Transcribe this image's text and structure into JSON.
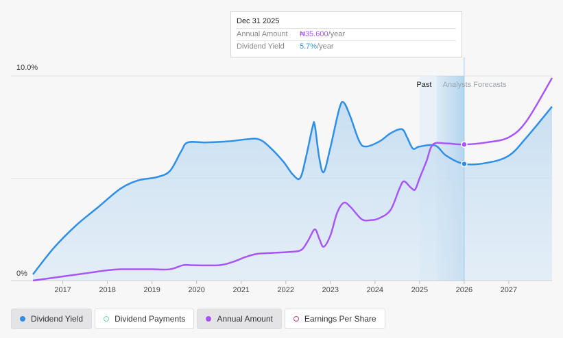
{
  "tooltip": {
    "date": "Dec 31 2025",
    "rows": [
      {
        "label": "Annual Amount",
        "value": "₦35.600",
        "unit": "/year",
        "color": "#a855f7"
      },
      {
        "label": "Dividend Yield",
        "value": "5.7%",
        "unit": "/year",
        "color": "#3a97e3"
      }
    ]
  },
  "legend": [
    {
      "label": "Dividend Yield",
      "color": "#2e8fe6",
      "filled": true,
      "active": true
    },
    {
      "label": "Dividend Payments",
      "color": "#6fd6c4",
      "filled": false,
      "active": false
    },
    {
      "label": "Annual Amount",
      "color": "#a855f7",
      "filled": true,
      "active": true
    },
    {
      "label": "Earnings Per Share",
      "color": "#c4467a",
      "filled": false,
      "active": false
    }
  ],
  "chart_data": {
    "type": "line",
    "y_axis_labels": [
      "10.0%",
      "0%"
    ],
    "ylim": [
      0,
      10
    ],
    "x_ticks": [
      "2017",
      "2018",
      "2019",
      "2020",
      "2021",
      "2022",
      "2023",
      "2024",
      "2025",
      "2026",
      "2027"
    ],
    "xlim": [
      2016.33,
      2027.97
    ],
    "regions": {
      "past_label": "Past",
      "forecast_label": "Analysts Forecasts",
      "past_end": 2025.0,
      "now": 2026.0
    },
    "series": [
      {
        "name": "Dividend Yield",
        "color": "#2e8fe6",
        "unit": "%",
        "points": [
          [
            2016.33,
            0.3
          ],
          [
            2016.8,
            1.6
          ],
          [
            2017.3,
            2.7
          ],
          [
            2017.8,
            3.6
          ],
          [
            2018.3,
            4.5
          ],
          [
            2018.7,
            4.9
          ],
          [
            2019.1,
            5.05
          ],
          [
            2019.4,
            5.35
          ],
          [
            2019.65,
            6.3
          ],
          [
            2019.8,
            6.75
          ],
          [
            2020.2,
            6.75
          ],
          [
            2020.7,
            6.8
          ],
          [
            2021.1,
            6.9
          ],
          [
            2021.4,
            6.9
          ],
          [
            2021.65,
            6.5
          ],
          [
            2021.95,
            5.8
          ],
          [
            2022.15,
            5.2
          ],
          [
            2022.32,
            5.0
          ],
          [
            2022.45,
            6.0
          ],
          [
            2022.6,
            7.5
          ],
          [
            2022.65,
            7.6
          ],
          [
            2022.75,
            6.0
          ],
          [
            2022.85,
            5.3
          ],
          [
            2023.0,
            6.5
          ],
          [
            2023.2,
            8.4
          ],
          [
            2023.3,
            8.7
          ],
          [
            2023.45,
            8.0
          ],
          [
            2023.65,
            6.8
          ],
          [
            2023.8,
            6.55
          ],
          [
            2024.1,
            6.8
          ],
          [
            2024.35,
            7.2
          ],
          [
            2024.6,
            7.4
          ],
          [
            2024.72,
            7.0
          ],
          [
            2024.85,
            6.45
          ],
          [
            2025.0,
            6.55
          ],
          [
            2025.35,
            6.6
          ],
          [
            2025.6,
            6.1
          ],
          [
            2026.0,
            5.7
          ],
          [
            2026.5,
            5.75
          ],
          [
            2027.0,
            6.1
          ],
          [
            2027.4,
            7.0
          ],
          [
            2027.97,
            8.5
          ]
        ]
      },
      {
        "name": "Annual Amount",
        "color": "#a855f7",
        "unit": "₦",
        "points": [
          [
            2016.33,
            0.0
          ],
          [
            2017.0,
            0.2
          ],
          [
            2017.5,
            0.35
          ],
          [
            2018.0,
            0.5
          ],
          [
            2018.3,
            0.55
          ],
          [
            2018.7,
            0.55
          ],
          [
            2019.0,
            0.55
          ],
          [
            2019.4,
            0.55
          ],
          [
            2019.7,
            0.75
          ],
          [
            2019.9,
            0.75
          ],
          [
            2020.5,
            0.75
          ],
          [
            2020.8,
            0.9
          ],
          [
            2021.1,
            1.15
          ],
          [
            2021.35,
            1.3
          ],
          [
            2021.7,
            1.35
          ],
          [
            2022.1,
            1.4
          ],
          [
            2022.35,
            1.5
          ],
          [
            2022.5,
            1.95
          ],
          [
            2022.65,
            2.5
          ],
          [
            2022.75,
            2.05
          ],
          [
            2022.85,
            1.65
          ],
          [
            2023.0,
            2.2
          ],
          [
            2023.15,
            3.3
          ],
          [
            2023.3,
            3.8
          ],
          [
            2023.45,
            3.6
          ],
          [
            2023.7,
            3.0
          ],
          [
            2023.9,
            2.95
          ],
          [
            2024.1,
            3.05
          ],
          [
            2024.35,
            3.45
          ],
          [
            2024.55,
            4.5
          ],
          [
            2024.65,
            4.85
          ],
          [
            2024.8,
            4.55
          ],
          [
            2024.9,
            4.45
          ],
          [
            2025.0,
            5.0
          ],
          [
            2025.15,
            5.8
          ],
          [
            2025.3,
            6.65
          ],
          [
            2025.6,
            6.7
          ],
          [
            2026.0,
            6.65
          ],
          [
            2026.5,
            6.75
          ],
          [
            2027.0,
            7.0
          ],
          [
            2027.4,
            7.8
          ],
          [
            2027.97,
            9.9
          ]
        ]
      }
    ]
  }
}
